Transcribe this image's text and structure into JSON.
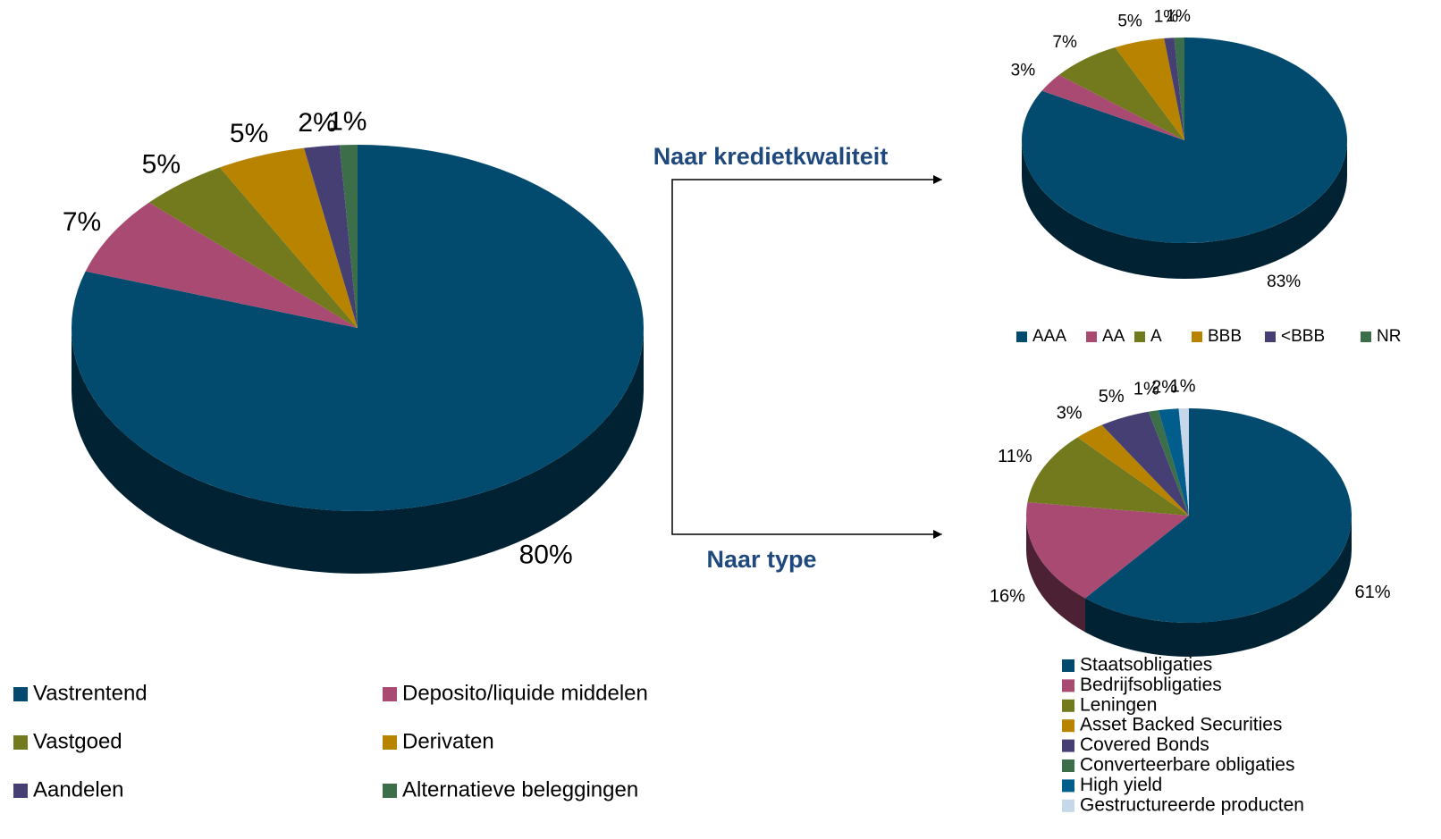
{
  "chart_data": [
    {
      "type": "pie",
      "categories": [
        "Vastrentend",
        "Deposito/liquide middelen",
        "Vastgoed",
        "Derivaten",
        "Aandelen",
        "Alternatieve beleggingen"
      ],
      "values": [
        80,
        7,
        5,
        5,
        2,
        1
      ],
      "value_labels": [
        "80%",
        "7%",
        "5%",
        "5%",
        "2%",
        "1%"
      ],
      "colors": [
        "#024b6e",
        "#a84a72",
        "#737a1e",
        "#b88400",
        "#463f74",
        "#3d6e4a"
      ]
    },
    {
      "type": "pie",
      "categories": [
        "AAA",
        "AA",
        "A",
        "BBB",
        "<BBB",
        "NR"
      ],
      "values": [
        83,
        3,
        7,
        5,
        1,
        1
      ],
      "value_labels": [
        "83%",
        "3%",
        "7%",
        "5%",
        "1%",
        "1%"
      ],
      "colors": [
        "#024b6e",
        "#a84a72",
        "#737a1e",
        "#b88400",
        "#463f74",
        "#3d6e4a"
      ]
    },
    {
      "type": "pie",
      "categories": [
        "Staatsobligaties",
        "Bedrijfsobligaties",
        "Leningen",
        "Asset Backed Securities",
        "Covered Bonds",
        "Converteerbare obligaties",
        "High yield",
        "Gestructureerde producten"
      ],
      "values": [
        61,
        16,
        11,
        3,
        5,
        1,
        2,
        1
      ],
      "value_labels": [
        "61%",
        "16%",
        "11%",
        "3%",
        "5%",
        "1%",
        "2%",
        "1%"
      ],
      "colors": [
        "#024b6e",
        "#a84a72",
        "#737a1e",
        "#b88400",
        "#463f74",
        "#3d6e4a",
        "#015e8c",
        "#c5d7e8"
      ]
    }
  ],
  "annotations": [
    "Naar kredietkwaliteit",
    "Naar type"
  ]
}
